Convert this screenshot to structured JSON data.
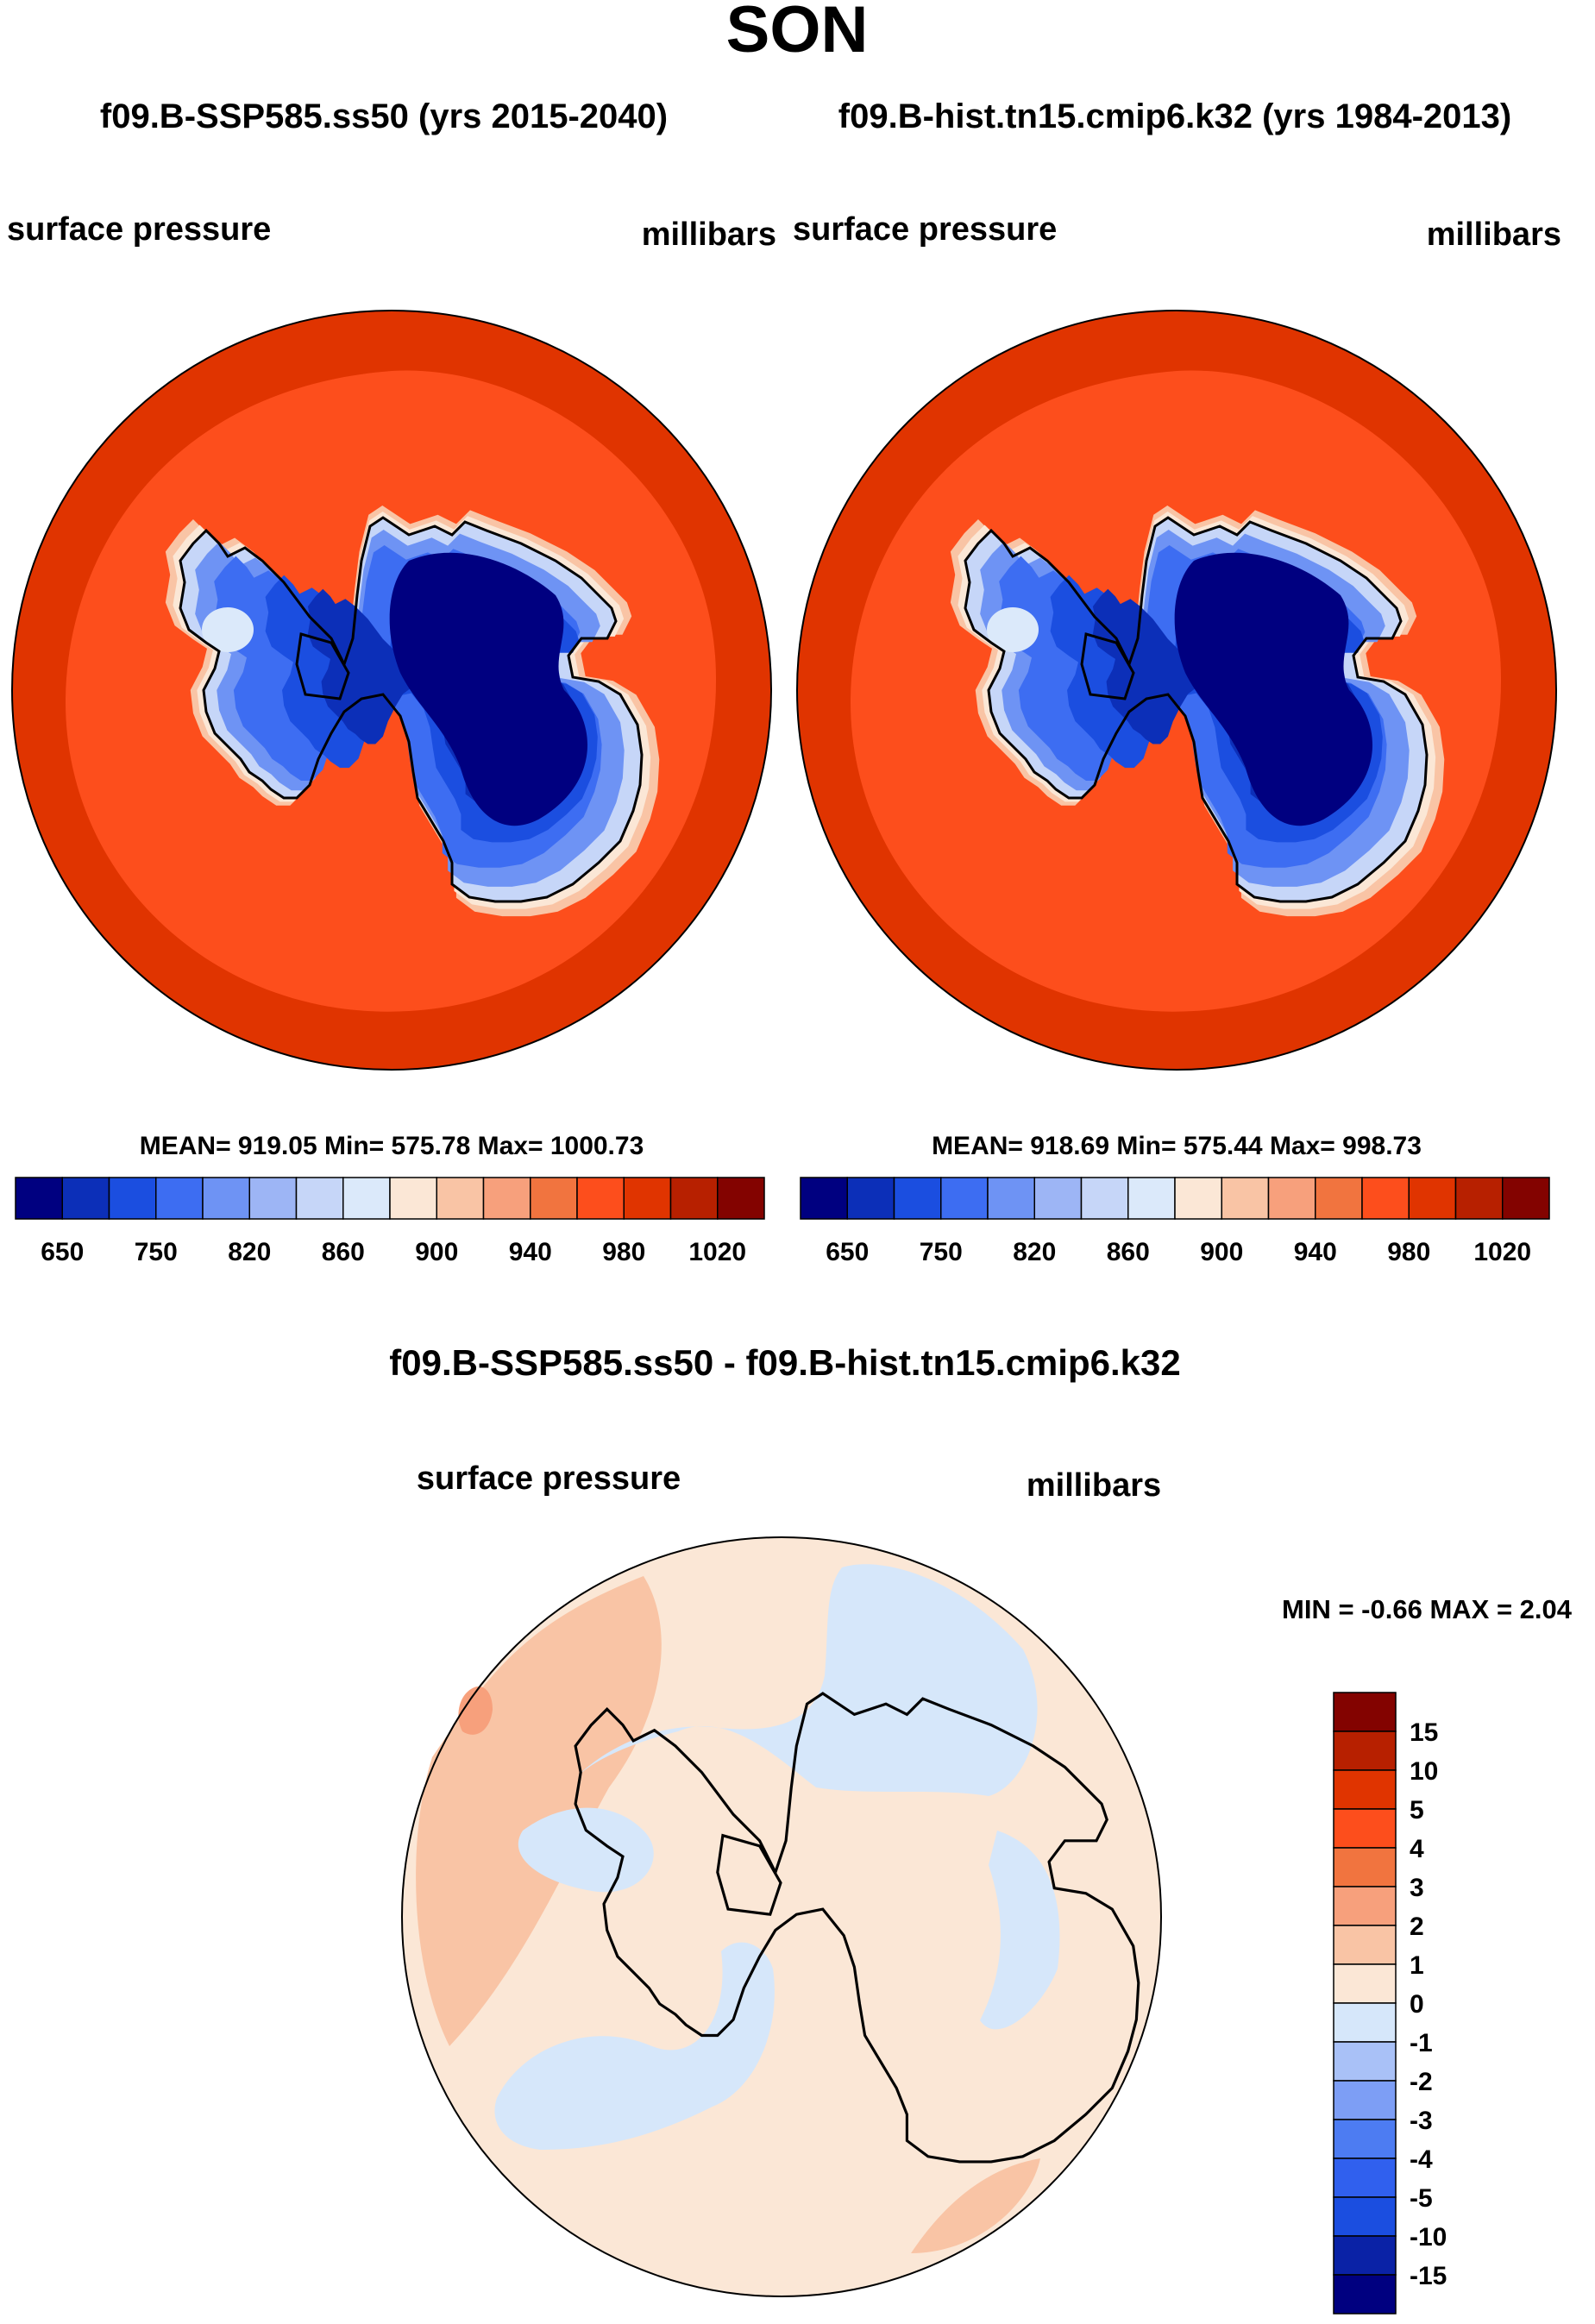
{
  "title": "SON",
  "chart_data": [
    {
      "type": "heatmap",
      "projection": "south polar stereographic",
      "case_label": "f09.B-SSP585.ss50 (yrs 2015-2040)",
      "left_label": "surface pressure",
      "right_label": "millibars",
      "stats_text": "MEAN= 919.05  Min= 575.78  Max= 1000.73",
      "mean": 919.05,
      "min": 575.78,
      "max": 1000.73,
      "colorbar_ticks": [
        "650",
        "750",
        "820",
        "860",
        "900",
        "940",
        "980",
        "1020"
      ]
    },
    {
      "type": "heatmap",
      "projection": "south polar stereographic",
      "case_label": "f09.B-hist.tn15.cmip6.k32 (yrs 1984-2013)",
      "left_label": "surface pressure",
      "right_label": "millibars",
      "stats_text": "MEAN= 918.69  Min= 575.44  Max= 998.73",
      "mean": 918.69,
      "min": 575.44,
      "max": 998.73,
      "colorbar_ticks": [
        "650",
        "750",
        "820",
        "860",
        "900",
        "940",
        "980",
        "1020"
      ]
    },
    {
      "type": "heatmap",
      "projection": "south polar stereographic",
      "title": "f09.B-SSP585.ss50 - f09.B-hist.tn15.cmip6.k32",
      "left_label": "surface pressure",
      "right_label": "millibars",
      "stats_text": "MIN =  -0.66 MAX =   2.04",
      "min": -0.66,
      "max": 2.04,
      "colorbar_labels": [
        "15",
        "10",
        "5",
        "4",
        "3",
        "2",
        "1",
        "0",
        "-1",
        "-2",
        "-3",
        "-4",
        "-5",
        "-10",
        "-15"
      ]
    }
  ],
  "colors": {
    "abs_scale": [
      "#000080",
      "#0c2fb8",
      "#1b4ee0",
      "#3d6df2",
      "#6e93f4",
      "#9db5f5",
      "#c6d6f8",
      "#dbe9fa",
      "#fbe7d6",
      "#f9c4a5",
      "#f7a07c",
      "#f1743f",
      "#fd4e1c",
      "#e03400",
      "#b72000",
      "#830300"
    ],
    "diff_scale": [
      "#000080",
      "#0a22a6",
      "#1b4ee0",
      "#3060ee",
      "#4d7cf2",
      "#7d9ef5",
      "#a9c1f7",
      "#d6e7fa",
      "#fbe7d6",
      "#f9c4a5",
      "#f7a07c",
      "#f1743f",
      "#fd4e1c",
      "#e03400",
      "#b72000",
      "#830300"
    ],
    "ocean_outer": "#e03400",
    "ocean_inner": "#fd4e1c",
    "diff_background": "#fbe7d6",
    "diff_negative": "#d6e7fa",
    "diff_positive": "#f9c4a5",
    "diff_positive_strong": "#f7a07c"
  }
}
